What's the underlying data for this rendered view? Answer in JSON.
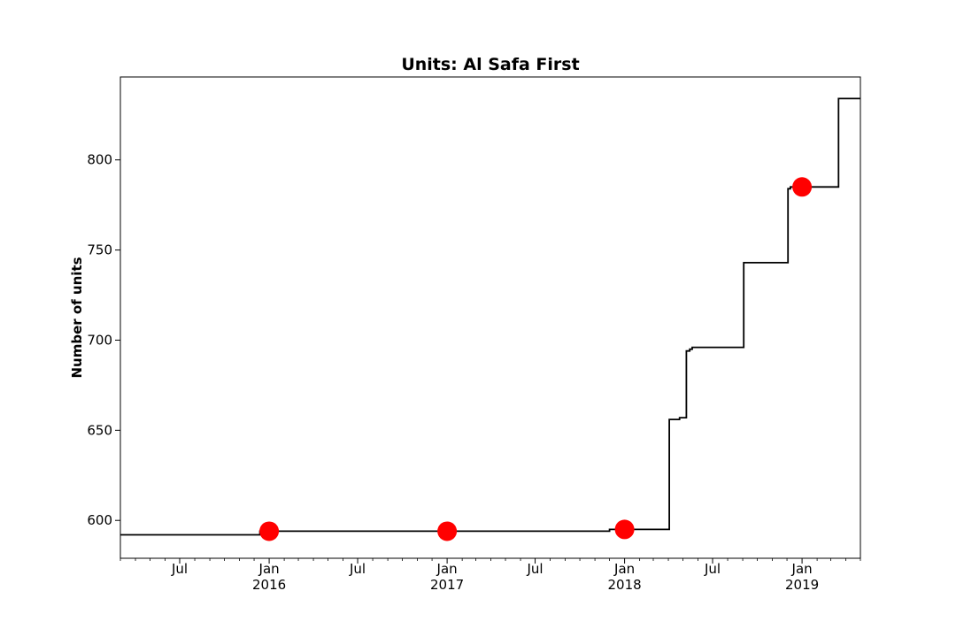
{
  "chart_data": {
    "type": "line",
    "title": "Units: Al Safa First",
    "xlabel": "",
    "ylabel": "Number of units",
    "xlim": [
      "2015-03-01",
      "2019-05-01"
    ],
    "ylim": [
      579,
      846
    ],
    "yticks": [
      600,
      650,
      700,
      750,
      800
    ],
    "xticks": [
      {
        "date": "2015-07-01",
        "label": "Jul",
        "year": ""
      },
      {
        "date": "2016-01-01",
        "label": "Jan",
        "year": "2016"
      },
      {
        "date": "2016-07-01",
        "label": "Jul",
        "year": ""
      },
      {
        "date": "2017-01-01",
        "label": "Jan",
        "year": "2017"
      },
      {
        "date": "2017-07-01",
        "label": "Jul",
        "year": ""
      },
      {
        "date": "2018-01-01",
        "label": "Jan",
        "year": "2018"
      },
      {
        "date": "2018-07-01",
        "label": "Jul",
        "year": ""
      },
      {
        "date": "2019-01-01",
        "label": "Jan",
        "year": "2019"
      }
    ],
    "grid": false,
    "series": [
      {
        "style": "step",
        "color": "#000000",
        "points": [
          [
            "2015-03-01",
            592
          ],
          [
            "2015-12-10",
            592
          ],
          [
            "2015-12-13",
            594
          ],
          [
            "2017-11-28",
            594
          ],
          [
            "2017-12-01",
            595
          ],
          [
            "2018-04-01",
            595
          ],
          [
            "2018-04-03",
            656
          ],
          [
            "2018-04-24",
            657
          ],
          [
            "2018-05-08",
            694
          ],
          [
            "2018-05-15",
            695
          ],
          [
            "2018-05-20",
            696
          ],
          [
            "2018-09-01",
            696
          ],
          [
            "2018-09-03",
            743
          ],
          [
            "2018-12-01",
            743
          ],
          [
            "2018-12-03",
            784
          ],
          [
            "2018-12-08",
            785
          ],
          [
            "2019-03-15",
            785
          ],
          [
            "2019-03-17",
            834
          ],
          [
            "2019-05-01",
            834
          ]
        ]
      },
      {
        "style": "markers",
        "color": "#ff0000",
        "points": [
          [
            "2016-01-01",
            594
          ],
          [
            "2017-01-01",
            594
          ],
          [
            "2018-01-01",
            595
          ],
          [
            "2019-01-01",
            785
          ]
        ]
      }
    ]
  }
}
